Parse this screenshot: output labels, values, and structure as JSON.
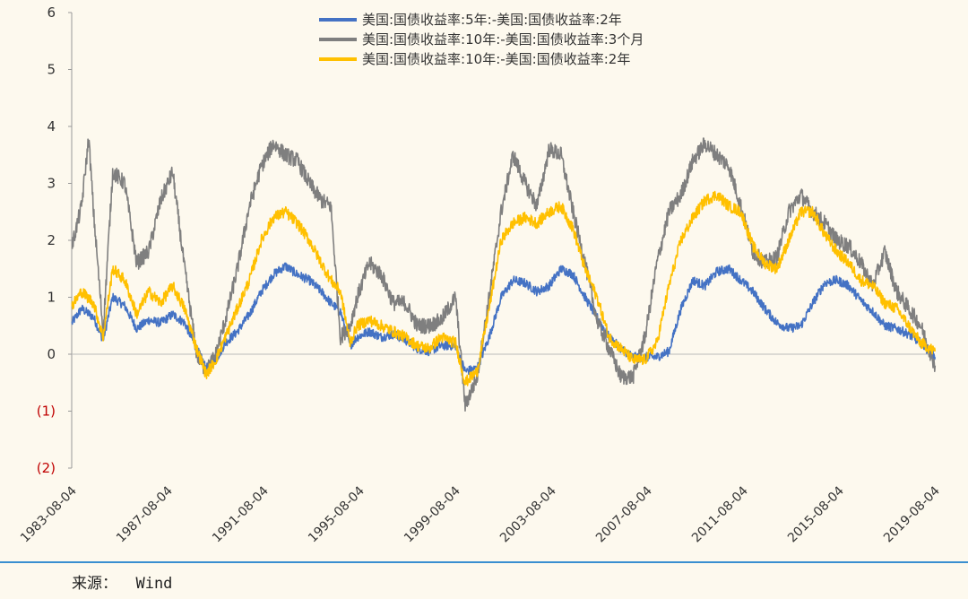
{
  "chart_data": {
    "type": "line",
    "title": "",
    "xlabel": "",
    "ylabel": "",
    "ylim": [
      -2,
      6
    ],
    "yticks": [
      6,
      5,
      4,
      3,
      2,
      1,
      0,
      -1,
      -2
    ],
    "ytick_labels": [
      "6",
      "5",
      "4",
      "3",
      "2",
      "1",
      "0",
      "(1)",
      "(2)"
    ],
    "x_start_year": 1983.59,
    "x_end_year": 2019.59,
    "xtick_labels": [
      "1983-08-04",
      "1987-08-04",
      "1991-08-04",
      "1995-08-04",
      "1999-08-04",
      "2003-08-04",
      "2007-08-04",
      "2011-08-04",
      "2015-08-04",
      "2019-08-04"
    ],
    "xtick_years": [
      1983.59,
      1987.59,
      1991.59,
      1995.59,
      1999.59,
      2003.59,
      2007.59,
      2011.59,
      2015.59,
      2019.59
    ],
    "legend_position": "top-center",
    "series": [
      {
        "name": "美国:国债收益率:5年:-美国:国债收益率:2年",
        "color": "#4472c4",
        "x": [
          1983.6,
          1984.0,
          1984.5,
          1984.9,
          1985.3,
          1985.8,
          1986.3,
          1986.8,
          1987.3,
          1987.8,
          1988.3,
          1988.8,
          1989.2,
          1989.6,
          1990.0,
          1990.5,
          1991.0,
          1991.5,
          1992.0,
          1992.5,
          1993.0,
          1993.5,
          1994.0,
          1994.4,
          1994.8,
          1995.2,
          1995.5,
          1996.0,
          1996.5,
          1997.0,
          1997.5,
          1998.0,
          1998.5,
          1999.0,
          1999.6,
          2000.0,
          2000.5,
          2001.0,
          2001.5,
          2002.0,
          2002.5,
          2003.0,
          2003.5,
          2004.0,
          2004.5,
          2005.0,
          2005.5,
          2006.0,
          2006.5,
          2007.0,
          2007.5,
          2008.0,
          2008.5,
          2009.0,
          2009.5,
          2010.0,
          2010.5,
          2011.0,
          2011.5,
          2012.0,
          2012.5,
          2013.0,
          2013.5,
          2014.0,
          2014.5,
          2015.0,
          2015.5,
          2016.0,
          2016.5,
          2017.0,
          2017.5,
          2018.0,
          2018.5,
          2019.0,
          2019.6
        ],
        "values": [
          0.55,
          0.8,
          0.65,
          0.25,
          1.0,
          0.85,
          0.45,
          0.6,
          0.55,
          0.7,
          0.55,
          0.1,
          -0.25,
          -0.1,
          0.2,
          0.4,
          0.7,
          1.1,
          1.4,
          1.55,
          1.4,
          1.3,
          1.1,
          0.9,
          0.75,
          0.15,
          0.3,
          0.4,
          0.3,
          0.35,
          0.25,
          0.1,
          0.05,
          0.15,
          0.15,
          -0.3,
          -0.25,
          0.3,
          1.0,
          1.3,
          1.25,
          1.1,
          1.2,
          1.5,
          1.4,
          1.0,
          0.65,
          0.3,
          0.1,
          -0.05,
          -0.05,
          -0.05,
          0.05,
          0.8,
          1.3,
          1.2,
          1.45,
          1.5,
          1.3,
          1.1,
          0.8,
          0.55,
          0.45,
          0.5,
          0.9,
          1.25,
          1.3,
          1.2,
          0.95,
          0.75,
          0.5,
          0.45,
          0.35,
          0.2,
          -0.05
        ]
      },
      {
        "name": "美国:国债收益率:10年:-美国:国债收益率:3个月",
        "color": "#7f7f7f",
        "x": [
          1983.6,
          1984.0,
          1984.3,
          1984.5,
          1984.9,
          1985.3,
          1985.8,
          1986.3,
          1986.8,
          1987.3,
          1987.8,
          1988.3,
          1988.8,
          1989.2,
          1989.6,
          1990.0,
          1990.5,
          1991.0,
          1991.5,
          1992.0,
          1992.5,
          1993.0,
          1993.5,
          1994.0,
          1994.4,
          1994.8,
          1995.2,
          1995.5,
          1996.0,
          1996.5,
          1997.0,
          1997.5,
          1998.0,
          1998.5,
          1999.0,
          1999.6,
          2000.0,
          2000.5,
          2001.0,
          2001.5,
          2002.0,
          2002.5,
          2003.0,
          2003.5,
          2004.0,
          2004.5,
          2005.0,
          2005.5,
          2006.0,
          2006.5,
          2007.0,
          2007.5,
          2008.0,
          2008.5,
          2009.0,
          2009.5,
          2010.0,
          2010.5,
          2011.0,
          2011.5,
          2012.0,
          2012.5,
          2013.0,
          2013.5,
          2014.0,
          2014.5,
          2015.0,
          2015.5,
          2016.0,
          2016.5,
          2017.0,
          2017.5,
          2018.0,
          2018.5,
          2019.0,
          2019.6
        ],
        "values": [
          1.9,
          2.6,
          3.8,
          2.5,
          0.4,
          3.2,
          3.0,
          1.6,
          1.8,
          2.7,
          3.2,
          1.5,
          0.0,
          -0.3,
          0.0,
          0.6,
          1.5,
          2.6,
          3.3,
          3.7,
          3.5,
          3.4,
          3.0,
          2.7,
          2.6,
          0.3,
          0.5,
          1.0,
          1.6,
          1.4,
          0.9,
          0.9,
          0.5,
          0.5,
          0.6,
          1.0,
          -0.9,
          -0.4,
          1.0,
          2.5,
          3.5,
          3.0,
          2.6,
          3.6,
          3.5,
          2.5,
          1.6,
          0.6,
          0.1,
          -0.4,
          -0.4,
          0.3,
          1.6,
          2.5,
          2.8,
          3.4,
          3.7,
          3.5,
          3.3,
          2.6,
          1.8,
          1.6,
          1.7,
          2.5,
          2.8,
          2.5,
          2.3,
          2.0,
          1.9,
          1.6,
          1.2,
          1.8,
          1.1,
          0.8,
          0.5,
          -0.2
        ]
      },
      {
        "name": "美国:国债收益率:10年:-美国:国债收益率:2年",
        "color": "#ffc000",
        "x": [
          1983.6,
          1984.0,
          1984.5,
          1984.9,
          1985.3,
          1985.8,
          1986.3,
          1986.8,
          1987.3,
          1987.8,
          1988.3,
          1988.8,
          1989.2,
          1989.6,
          1990.0,
          1990.5,
          1991.0,
          1991.5,
          1992.0,
          1992.5,
          1993.0,
          1993.5,
          1994.0,
          1994.4,
          1994.8,
          1995.2,
          1995.5,
          1996.0,
          1996.5,
          1997.0,
          1997.5,
          1998.0,
          1998.5,
          1999.0,
          1999.6,
          2000.0,
          2000.5,
          2001.0,
          2001.5,
          2002.0,
          2002.5,
          2003.0,
          2003.5,
          2004.0,
          2004.5,
          2005.0,
          2005.5,
          2006.0,
          2006.5,
          2007.0,
          2007.5,
          2008.0,
          2008.5,
          2009.0,
          2009.5,
          2010.0,
          2010.5,
          2011.0,
          2011.5,
          2012.0,
          2012.5,
          2013.0,
          2013.5,
          2014.0,
          2014.5,
          2015.0,
          2015.5,
          2016.0,
          2016.5,
          2017.0,
          2017.5,
          2018.0,
          2018.5,
          2019.0,
          2019.6
        ],
        "values": [
          0.85,
          1.1,
          0.9,
          0.3,
          1.5,
          1.3,
          0.7,
          1.1,
          0.9,
          1.2,
          0.8,
          0.1,
          -0.35,
          -0.1,
          0.3,
          0.8,
          1.3,
          2.0,
          2.4,
          2.5,
          2.3,
          2.0,
          1.6,
          1.3,
          1.1,
          0.2,
          0.5,
          0.6,
          0.5,
          0.4,
          0.3,
          0.15,
          0.1,
          0.3,
          0.2,
          -0.5,
          -0.3,
          0.8,
          2.0,
          2.3,
          2.4,
          2.3,
          2.5,
          2.6,
          2.2,
          1.5,
          1.0,
          0.3,
          0.1,
          -0.1,
          -0.1,
          0.2,
          1.2,
          2.0,
          2.4,
          2.7,
          2.8,
          2.6,
          2.5,
          1.9,
          1.6,
          1.5,
          2.0,
          2.5,
          2.5,
          2.1,
          1.8,
          1.6,
          1.3,
          1.2,
          0.9,
          0.8,
          0.5,
          0.2,
          0.05
        ]
      }
    ]
  },
  "footer": {
    "source": "来源：  Wind"
  }
}
